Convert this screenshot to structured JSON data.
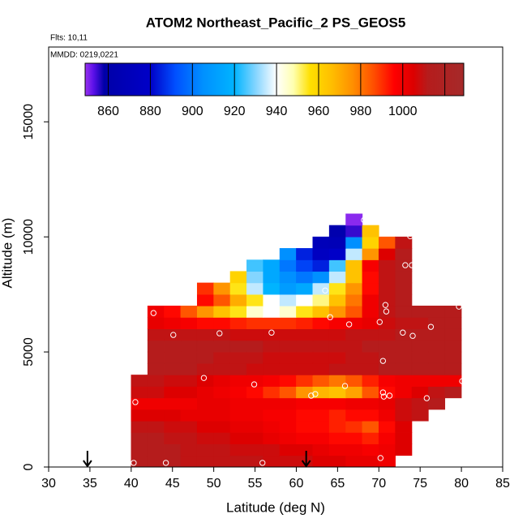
{
  "chart_data": {
    "type": "heatmap",
    "title": "ATOM2 Northeast_Pacific_2 PS_GEOS5",
    "subtitle": "Flts: 10,11",
    "annotation": "MMDD: 0219,0221",
    "x_label": "Latitude (deg N)",
    "y_label": "Altitude (m)",
    "xlim": [
      30,
      85
    ],
    "xticks": [
      30,
      35,
      40,
      45,
      50,
      55,
      60,
      65,
      70,
      75,
      80,
      85
    ],
    "ylim": [
      0,
      18250
    ],
    "yticks": [
      0,
      5000,
      10000,
      15000
    ],
    "x_edges": [
      40,
      42,
      44,
      46,
      48,
      50,
      52,
      54,
      56,
      58,
      60,
      62,
      64,
      66,
      68,
      70,
      72,
      74,
      76,
      78,
      80
    ],
    "y_edges": [
      0,
      500,
      1000,
      1500,
      2000,
      2500,
      3000,
      3500,
      4000,
      4500,
      5000,
      5500,
      6000,
      6500,
      7000,
      7500,
      8000,
      8500,
      9000,
      9500,
      10000,
      10500,
      11000
    ],
    "z": [
      [
        1012,
        1012,
        1012,
        1010,
        1010,
        1010,
        1010,
        1010,
        1008,
        1008,
        1008,
        1005,
        1005,
        1002,
        1002,
        1000,
        null,
        null,
        null,
        null
      ],
      [
        1012,
        1012,
        1012,
        1010,
        1010,
        1010,
        1008,
        1008,
        1008,
        1005,
        1005,
        1002,
        1000,
        1000,
        998,
        1000,
        1005,
        null,
        null,
        null
      ],
      [
        1012,
        1012,
        1010,
        1010,
        1008,
        1008,
        1005,
        1005,
        1002,
        1000,
        998,
        998,
        995,
        995,
        992,
        998,
        1005,
        null,
        null,
        null
      ],
      [
        1010,
        1010,
        1008,
        1008,
        1005,
        1005,
        1002,
        1002,
        1000,
        998,
        995,
        995,
        992,
        990,
        985,
        995,
        1005,
        null,
        null,
        null
      ],
      [
        1005,
        1005,
        1005,
        1002,
        1002,
        1002,
        1000,
        1000,
        998,
        998,
        995,
        995,
        992,
        995,
        995,
        1000,
        1008,
        1010,
        null,
        null
      ],
      [
        1000,
        1000,
        1000,
        1000,
        1002,
        1002,
        1000,
        1000,
        1000,
        1000,
        998,
        998,
        998,
        1000,
        1000,
        1002,
        1008,
        1010,
        1012,
        null
      ],
      [
        1008,
        1008,
        1005,
        1005,
        1002,
        1000,
        998,
        995,
        990,
        985,
        975,
        968,
        965,
        972,
        985,
        995,
        1000,
        1005,
        1010,
        1012
      ],
      [
        1010,
        1010,
        1008,
        1008,
        1005,
        1002,
        1000,
        1000,
        998,
        995,
        990,
        985,
        980,
        985,
        992,
        998,
        1000,
        1000,
        1000,
        1000
      ],
      [
        null,
        1012,
        1012,
        1012,
        1010,
        1010,
        1010,
        1008,
        1008,
        1008,
        1008,
        1008,
        1010,
        1010,
        1010,
        1012,
        1012,
        1012,
        1012,
        1012
      ],
      [
        null,
        1012,
        1012,
        1012,
        1012,
        1010,
        1010,
        1010,
        1008,
        1008,
        1008,
        1008,
        1008,
        1010,
        1010,
        1012,
        1012,
        1012,
        1012,
        1012
      ],
      [
        null,
        1012,
        1012,
        1012,
        1012,
        1012,
        1012,
        1012,
        1010,
        1010,
        1010,
        1010,
        1010,
        1010,
        1012,
        1012,
        1012,
        1012,
        1012,
        1012
      ],
      [
        null,
        1010,
        1010,
        1010,
        1010,
        1010,
        1008,
        1008,
        1008,
        1008,
        1008,
        1008,
        1008,
        1010,
        1010,
        1010,
        1012,
        1012,
        1012,
        1012
      ],
      [
        null,
        1002,
        1000,
        998,
        995,
        995,
        992,
        990,
        990,
        990,
        992,
        995,
        998,
        1000,
        1002,
        1008,
        1010,
        1010,
        1012,
        1012
      ],
      [
        null,
        1000,
        995,
        985,
        975,
        965,
        955,
        945,
        940,
        945,
        955,
        965,
        975,
        985,
        1000,
        1010,
        1012,
        1012,
        1012,
        1012
      ],
      [
        null,
        null,
        null,
        null,
        995,
        985,
        970,
        955,
        940,
        935,
        940,
        950,
        965,
        980,
        1000,
        1010,
        1012,
        null,
        null,
        null
      ],
      [
        null,
        null,
        null,
        null,
        990,
        975,
        955,
        935,
        920,
        910,
        915,
        935,
        955,
        975,
        995,
        1010,
        1012,
        null,
        null,
        null
      ],
      [
        null,
        null,
        null,
        null,
        null,
        null,
        960,
        930,
        915,
        905,
        900,
        905,
        935,
        965,
        995,
        1010,
        1012,
        null,
        null,
        null
      ],
      [
        null,
        null,
        null,
        null,
        null,
        null,
        null,
        925,
        915,
        900,
        890,
        885,
        925,
        965,
        998,
        1010,
        1012,
        null,
        null,
        null
      ],
      [
        null,
        null,
        null,
        null,
        null,
        null,
        null,
        null,
        null,
        905,
        885,
        875,
        880,
        935,
        975,
        1005,
        1012,
        null,
        null,
        null
      ],
      [
        null,
        null,
        null,
        null,
        null,
        null,
        null,
        null,
        null,
        null,
        null,
        870,
        868,
        905,
        960,
        985,
        1010,
        null,
        null,
        null
      ],
      [
        null,
        null,
        null,
        null,
        null,
        null,
        null,
        null,
        null,
        null,
        null,
        null,
        862,
        855,
        965,
        null,
        null,
        null,
        null,
        null
      ],
      [
        null,
        null,
        null,
        null,
        null,
        null,
        null,
        null,
        null,
        null,
        null,
        null,
        null,
        850,
        null,
        null,
        null,
        null,
        null,
        null
      ]
    ],
    "points": {
      "color": "#ffffff",
      "x": [
        68.2,
        73.8,
        78.7,
        73.2,
        74.0,
        63.5,
        79.7,
        70.8,
        70.9,
        42.7,
        64.1,
        66.4,
        70.1,
        76.3,
        45.1,
        50.7,
        57.0,
        72.9,
        74.1,
        70.5,
        48.8,
        54.9,
        65.9,
        80.1,
        62.3,
        61.8,
        70.5,
        70.6,
        71.3,
        75.8,
        40.5,
        40.3,
        44.2,
        55.9,
        70.2
      ],
      "y": [
        10730,
        10030,
        9650,
        8770,
        8770,
        7670,
        6970,
        7040,
        6760,
        6690,
        6510,
        6200,
        6300,
        6090,
        5740,
        5810,
        5840,
        5840,
        5700,
        4610,
        3870,
        3590,
        3520,
        3730,
        3170,
        3100,
        3240,
        3060,
        3100,
        2990,
        2820,
        180,
        180,
        180,
        390
      ]
    },
    "arrow_x": [
      34.7,
      61.2
    ],
    "colorbar": {
      "clim": [
        849,
        1029
      ],
      "ticks": [
        860,
        880,
        900,
        920,
        940,
        960,
        980,
        1000,
        {
          "value": 1020,
          "label": null
        }
      ],
      "colorscale": [
        [
          849,
          "#9a32f0"
        ],
        [
          853,
          "#5a10e8"
        ],
        [
          858,
          "#0000a8"
        ],
        [
          880,
          "#0000c8"
        ],
        [
          892,
          "#0050ff"
        ],
        [
          905,
          "#0090ff"
        ],
        [
          920,
          "#00b4ff"
        ],
        [
          931,
          "#90d8ff"
        ],
        [
          940,
          "#ffffff"
        ],
        [
          948,
          "#ffffb0"
        ],
        [
          956,
          "#ffe000"
        ],
        [
          966,
          "#ffbf00"
        ],
        [
          976,
          "#ff9000"
        ],
        [
          986,
          "#ff5000"
        ],
        [
          996,
          "#ff0000"
        ],
        [
          1005,
          "#dd0000"
        ],
        [
          1012,
          "#b51c1c"
        ],
        [
          1029,
          "#a52a2a"
        ]
      ]
    }
  }
}
